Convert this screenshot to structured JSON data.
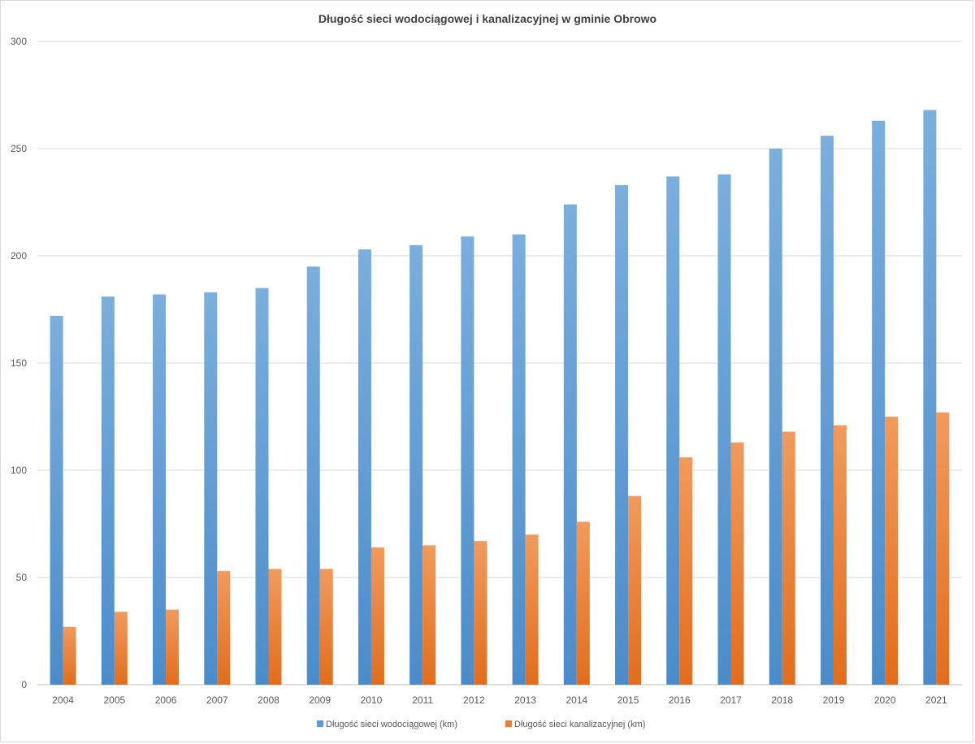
{
  "chart_data": {
    "type": "bar",
    "title": "Długość sieci wodociągowej i kanalizacyjnej w gminie Obrowo",
    "xlabel": "",
    "ylabel": "",
    "ylim": [
      0,
      300
    ],
    "yticks": [
      0,
      50,
      100,
      150,
      200,
      250,
      300
    ],
    "grid": true,
    "legend_position": "bottom",
    "categories": [
      "2004",
      "2005",
      "2006",
      "2007",
      "2008",
      "2009",
      "2010",
      "2011",
      "2012",
      "2013",
      "2014",
      "2015",
      "2016",
      "2017",
      "2018",
      "2019",
      "2020",
      "2021"
    ],
    "series": [
      {
        "name": "Długość sieci wodociągowej (km)",
        "color": "#5b9bd5",
        "values": [
          172,
          181,
          182,
          183,
          185,
          195,
          203,
          205,
          209,
          210,
          224,
          233,
          237,
          238,
          250,
          256,
          263,
          268
        ]
      },
      {
        "name": "Długość sieci kanalizacyjnej (km)",
        "color": "#ed7d31",
        "values": [
          27,
          34,
          35,
          53,
          54,
          54,
          64,
          65,
          67,
          70,
          76,
          88,
          106,
          113,
          118,
          121,
          125,
          127
        ]
      }
    ]
  }
}
